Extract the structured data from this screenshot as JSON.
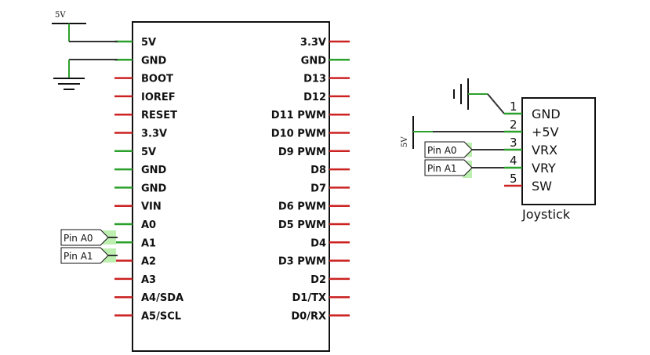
{
  "arduino": {
    "left_pins": [
      {
        "label": "5V",
        "color": "#2ca02c"
      },
      {
        "label": "GND",
        "color": "#2ca02c"
      },
      {
        "label": "BOOT",
        "color": "#cc2222"
      },
      {
        "label": "IOREF",
        "color": "#cc2222"
      },
      {
        "label": "RESET",
        "color": "#cc2222"
      },
      {
        "label": "3.3V",
        "color": "#cc2222"
      },
      {
        "label": "5V",
        "color": "#2ca02c"
      },
      {
        "label": "GND",
        "color": "#2ca02c"
      },
      {
        "label": "GND",
        "color": "#2ca02c"
      },
      {
        "label": "VIN",
        "color": "#cc2222"
      },
      {
        "label": "A0",
        "color": "#2ca02c"
      },
      {
        "label": "A1",
        "color": "#2ca02c"
      },
      {
        "label": "A2",
        "color": "#cc2222"
      },
      {
        "label": "A3",
        "color": "#cc2222"
      },
      {
        "label": "A4/SDA",
        "color": "#cc2222"
      },
      {
        "label": "A5/SCL",
        "color": "#cc2222"
      }
    ],
    "right_pins": [
      {
        "label": "3.3V",
        "color": "#cc2222"
      },
      {
        "label": "GND",
        "color": "#2ca02c"
      },
      {
        "label": "D13",
        "color": "#cc2222"
      },
      {
        "label": "D12",
        "color": "#cc2222"
      },
      {
        "label": "D11 PWM",
        "color": "#cc2222"
      },
      {
        "label": "D10 PWM",
        "color": "#cc2222"
      },
      {
        "label": "D9 PWM",
        "color": "#cc2222"
      },
      {
        "label": "D8",
        "color": "#cc2222"
      },
      {
        "label": "D7",
        "color": "#cc2222"
      },
      {
        "label": "D6 PWM",
        "color": "#cc2222"
      },
      {
        "label": "D5 PWM",
        "color": "#cc2222"
      },
      {
        "label": "D4",
        "color": "#cc2222"
      },
      {
        "label": "D3 PWM",
        "color": "#cc2222"
      },
      {
        "label": "D2",
        "color": "#cc2222"
      },
      {
        "label": "D1/TX",
        "color": "#cc2222"
      },
      {
        "label": "D0/RX",
        "color": "#cc2222"
      }
    ]
  },
  "power_5v_label": "5V",
  "net_labels": {
    "left_a0": "Pin A0",
    "left_a1": "Pin A1",
    "joy_a0": "Pin A0",
    "joy_a1": "Pin A1"
  },
  "joystick": {
    "title": "Joystick",
    "pins": [
      {
        "num": "1",
        "name": "GND",
        "color": "#2ca02c"
      },
      {
        "num": "2",
        "name": "+5V",
        "color": "#2ca02c"
      },
      {
        "num": "3",
        "name": "VRX",
        "color": "#2ca02c"
      },
      {
        "num": "4",
        "name": "VRY",
        "color": "#2ca02c"
      },
      {
        "num": "5",
        "name": "SW",
        "color": "#cc2222"
      }
    ]
  },
  "colors": {
    "connected": "#2ca02c",
    "unconnected": "#cc2222",
    "wire": "#333333",
    "highlight": "#bdf0b0"
  }
}
